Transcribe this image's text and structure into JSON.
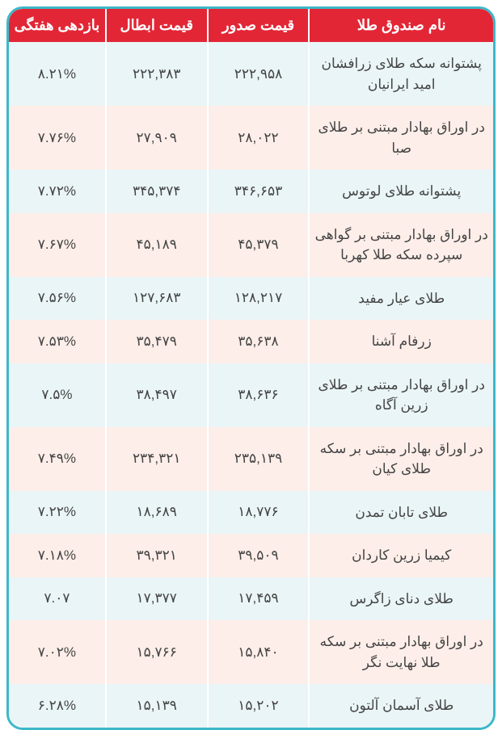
{
  "columns": [
    {
      "key": "name",
      "label": "نام صندوق طلا"
    },
    {
      "key": "issue",
      "label": "قیمت صدور"
    },
    {
      "key": "redeem",
      "label": "قیمت ابطال"
    },
    {
      "key": "weekly",
      "label": "بازدهی هفتگی"
    }
  ],
  "rows": [
    {
      "name": "پشتوانه سکه طلای زرافشان امید ایرانیان",
      "issue": "۲۲۲,۹۵۸",
      "redeem": "۲۲۲,۳۸۳",
      "weekly": "۸.۲۱%"
    },
    {
      "name": "در اوراق بهادار مبتنی بر طلای صبا",
      "issue": "۲۸,۰۲۲",
      "redeem": "۲۷,۹۰۹",
      "weekly": "۷.۷۶%"
    },
    {
      "name": "پشتوانه طلای لوتوس",
      "issue": "۳۴۶,۶۵۳",
      "redeem": "۳۴۵,۳۷۴",
      "weekly": "۷.۷۲%"
    },
    {
      "name": "در اوراق بهادار مبتنی بر گواهی سپرده سکه طلا کهربا",
      "issue": "۴۵,۳۷۹",
      "redeem": "۴۵,۱۸۹",
      "weekly": "۷.۶۷%"
    },
    {
      "name": "طلای عیار مفید",
      "issue": "۱۲۸,۲۱۷",
      "redeem": "۱۲۷,۶۸۳",
      "weekly": "۷.۵۶%"
    },
    {
      "name": "زرفام آشنا",
      "issue": "۳۵,۶۳۸",
      "redeem": "۳۵,۴۷۹",
      "weekly": "۷.۵۳%"
    },
    {
      "name": "در اوراق بهادار مبتنی بر طلای زرین آگاه",
      "issue": "۳۸,۶۳۶",
      "redeem": "۳۸,۴۹۷",
      "weekly": "۷.۵%"
    },
    {
      "name": "در اوراق بهادار مبتنی بر سکه طلای کیان",
      "issue": "۲۳۵,۱۳۹",
      "redeem": "۲۳۴,۳۲۱",
      "weekly": "۷.۴۹%"
    },
    {
      "name": "طلای تابان تمدن",
      "issue": "۱۸,۷۷۶",
      "redeem": "۱۸,۶۸۹",
      "weekly": "۷.۲۲%"
    },
    {
      "name": "کیمیا زرین کاردان",
      "issue": "۳۹,۵۰۹",
      "redeem": "۳۹,۳۲۱",
      "weekly": "۷.۱۸%"
    },
    {
      "name": "طلای دنای زاگرس",
      "issue": "۱۷,۴۵۹",
      "redeem": "۱۷,۳۷۷",
      "weekly": "۷.۰۷"
    },
    {
      "name": "در اوراق بهادار مبتنی بر سکه طلا نهایت نگر",
      "issue": "۱۵,۸۴۰",
      "redeem": "۱۵,۷۶۶",
      "weekly": "۷.۰۲%"
    },
    {
      "name": "طلای آسمان آلتون",
      "issue": "۱۵,۲۰۲",
      "redeem": "۱۵,۱۳۹",
      "weekly": "۶.۲۸%"
    }
  ],
  "colors": {
    "header_bg": "#e32636",
    "header_fg": "#ffffff",
    "border": "#3db8c8",
    "row_even": "#eaf5f7",
    "row_odd": "#fdeee9"
  }
}
